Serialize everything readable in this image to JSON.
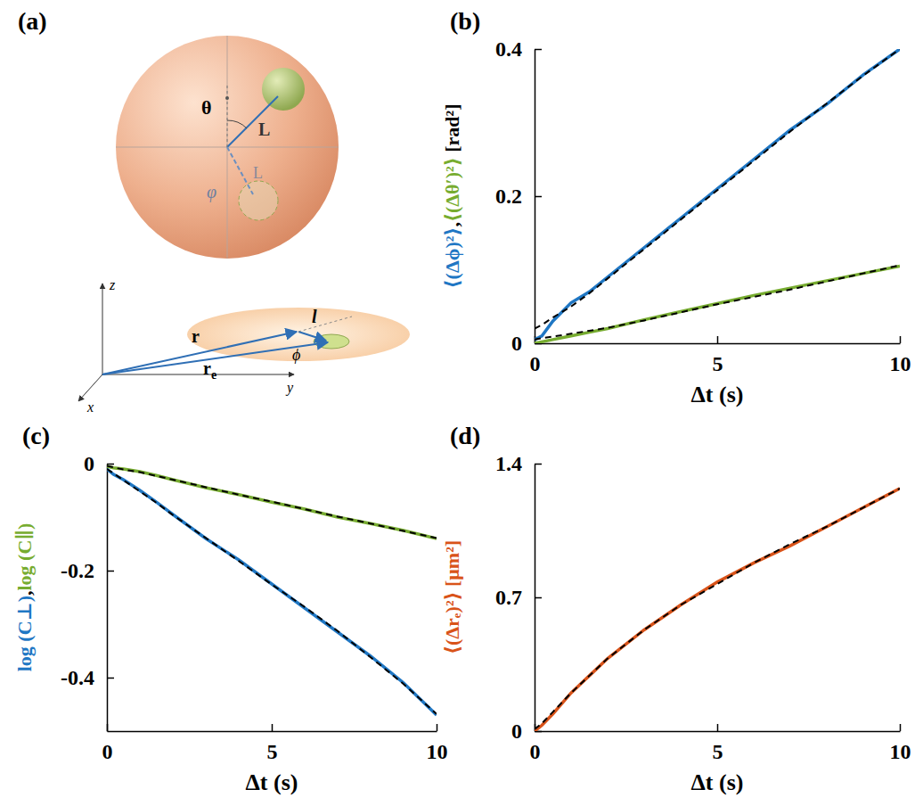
{
  "diagram": {
    "panel": "(a)",
    "sphere": {
      "theta": "θ",
      "L": "L",
      "L_projected": "L",
      "phi": "φ"
    },
    "plane": {
      "x": "x",
      "y": "y",
      "z": "z",
      "r": "r",
      "r_e": {
        "base": "r",
        "sub": "e"
      },
      "l": "l",
      "phi": "ϕ"
    }
  },
  "chart_data": [
    {
      "type": "line",
      "panel": "(b)",
      "xlabel": "Δt (s)",
      "ylabel_parts": [
        {
          "text": "⟨(Δϕ)²⟩",
          "color": "#1f77c4"
        },
        {
          "text": ",",
          "color": "#000000"
        },
        {
          "text": "⟨(Δθ′)²⟩",
          "color": "#77ac30"
        },
        {
          "text": " [rad²]",
          "color": "#000000"
        }
      ],
      "xlim": [
        0,
        10
      ],
      "ylim": [
        0,
        0.4
      ],
      "xticks": [
        0,
        5,
        10
      ],
      "yticks": [
        0,
        0.2,
        0.4
      ],
      "x": [
        0,
        0.2,
        0.5,
        1,
        1.5,
        2,
        3,
        4,
        5,
        6,
        7,
        8,
        9,
        10
      ],
      "series": [
        {
          "color": "#1f77c4",
          "line_style": "solid",
          "values": [
            0.005,
            0.01,
            0.03,
            0.055,
            0.07,
            0.09,
            0.13,
            0.17,
            0.21,
            0.25,
            0.29,
            0.325,
            0.365,
            0.4
          ]
        },
        {
          "color": "#77ac30",
          "line_style": "solid",
          "values": [
            0,
            0.002,
            0.005,
            0.01,
            0.015,
            0.02,
            0.032,
            0.043,
            0.054,
            0.065,
            0.075,
            0.085,
            0.095,
            0.105
          ]
        },
        {
          "color": "#000000",
          "line_style": "dashed",
          "values": [
            0.02,
            0.025,
            0.035,
            0.05,
            0.068,
            0.088,
            0.128,
            0.168,
            0.208,
            0.248,
            0.288,
            0.326,
            0.364,
            0.4
          ]
        },
        {
          "color": "#000000",
          "line_style": "dashed",
          "values": [
            0.005,
            0.007,
            0.009,
            0.013,
            0.017,
            0.021,
            0.031,
            0.042,
            0.053,
            0.063,
            0.073,
            0.084,
            0.095,
            0.106
          ]
        }
      ]
    },
    {
      "type": "line",
      "panel": "(c)",
      "xlabel": "Δt (s)",
      "ylabel_parts": [
        {
          "text": "log (C⊥)",
          "color": "#1f77c4"
        },
        {
          "text": ",",
          "color": "#000000"
        },
        {
          "text": "log (C∥)",
          "color": "#77ac30"
        }
      ],
      "xlim": [
        0,
        10
      ],
      "ylim": [
        -0.5,
        0
      ],
      "xticks": [
        0,
        5,
        10
      ],
      "yticks": [
        -0.4,
        -0.2,
        0
      ],
      "x": [
        0,
        0.2,
        0.5,
        1,
        1.5,
        2,
        3,
        4,
        5,
        6,
        7,
        8,
        9,
        10
      ],
      "series": [
        {
          "color": "#1f77c4",
          "line_style": "solid",
          "values": [
            -0.01,
            -0.02,
            -0.03,
            -0.05,
            -0.072,
            -0.095,
            -0.14,
            -0.18,
            -0.225,
            -0.27,
            -0.315,
            -0.36,
            -0.41,
            -0.47
          ]
        },
        {
          "color": "#77ac30",
          "line_style": "solid",
          "values": [
            -0.005,
            -0.008,
            -0.01,
            -0.015,
            -0.022,
            -0.03,
            -0.045,
            -0.058,
            -0.072,
            -0.085,
            -0.1,
            -0.112,
            -0.125,
            -0.14
          ]
        },
        {
          "color": "#000000",
          "line_style": "dashed",
          "values": [
            -0.01,
            -0.018,
            -0.031,
            -0.052,
            -0.073,
            -0.096,
            -0.139,
            -0.182,
            -0.226,
            -0.268,
            -0.313,
            -0.362,
            -0.412,
            -0.468
          ]
        },
        {
          "color": "#000000",
          "line_style": "dashed",
          "values": [
            -0.004,
            -0.007,
            -0.011,
            -0.016,
            -0.023,
            -0.03,
            -0.044,
            -0.058,
            -0.071,
            -0.085,
            -0.099,
            -0.112,
            -0.126,
            -0.139
          ]
        }
      ]
    },
    {
      "type": "line",
      "panel": "(d)",
      "xlabel": "Δt (s)",
      "ylabel_parts": [
        {
          "text": "⟨(Δrₑ)²⟩ [μm²]",
          "color": "#d95319"
        }
      ],
      "xlim": [
        0,
        10
      ],
      "ylim": [
        0,
        1.4
      ],
      "xticks": [
        0,
        5,
        10
      ],
      "yticks": [
        0,
        0.7,
        1.4
      ],
      "x": [
        0,
        0.2,
        0.5,
        1,
        1.5,
        2,
        3,
        4,
        5,
        6,
        7,
        8,
        9,
        10
      ],
      "series": [
        {
          "color": "#d95319",
          "line_style": "solid",
          "values": [
            0,
            0.03,
            0.09,
            0.2,
            0.29,
            0.38,
            0.53,
            0.66,
            0.78,
            0.88,
            0.97,
            1.07,
            1.17,
            1.27
          ]
        },
        {
          "color": "#000000",
          "line_style": "dashed",
          "values": [
            0.01,
            0.04,
            0.1,
            0.2,
            0.29,
            0.38,
            0.53,
            0.66,
            0.77,
            0.88,
            0.98,
            1.07,
            1.17,
            1.27
          ]
        }
      ]
    }
  ]
}
